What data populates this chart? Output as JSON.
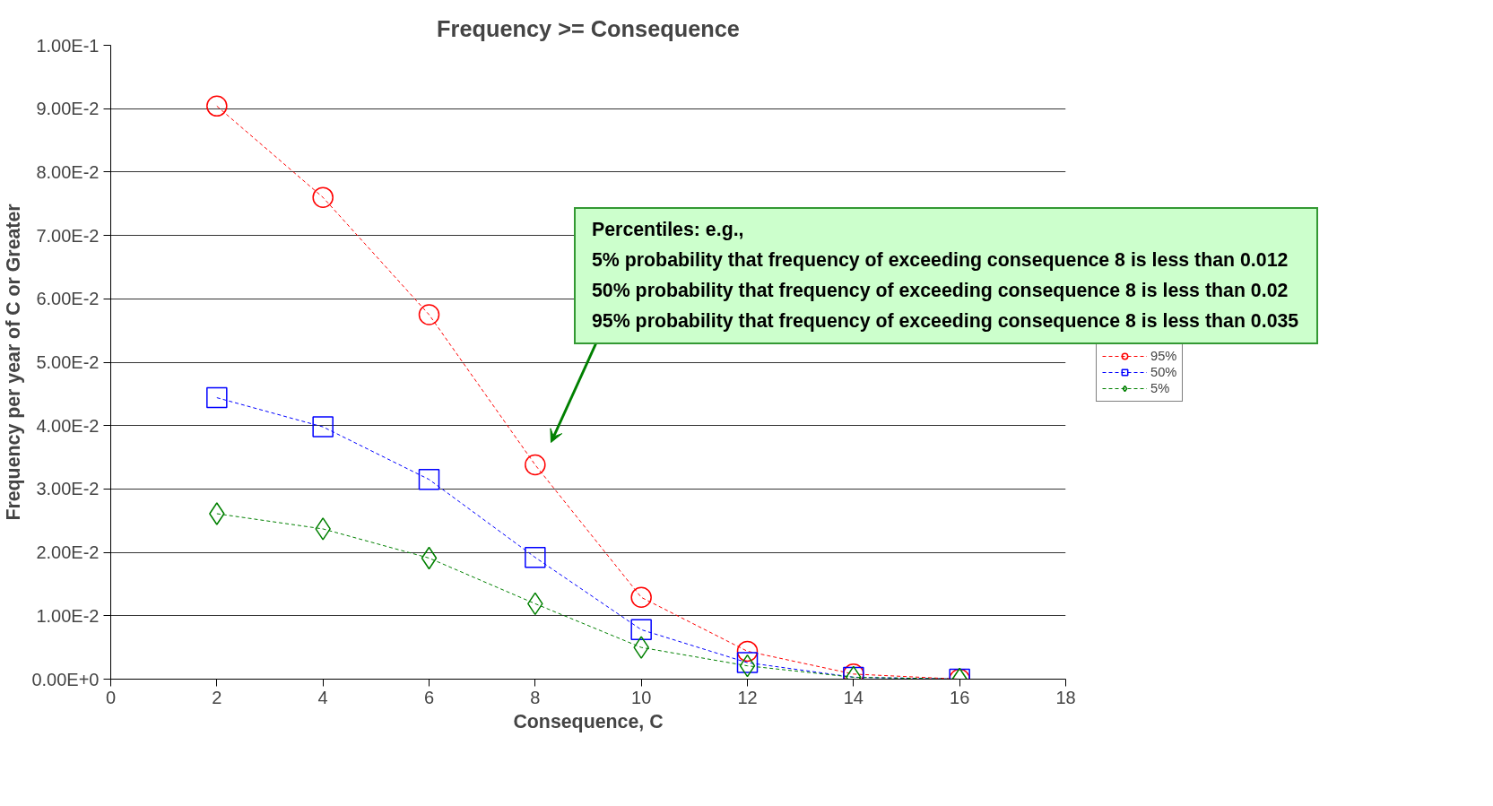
{
  "chart_data": {
    "type": "line",
    "title": "Frequency >= Consequence",
    "xlabel": "Consequence, C",
    "ylabel": "Frequency per year of C or Greater",
    "x": [
      2,
      4,
      6,
      8,
      10,
      12,
      14,
      16
    ],
    "series": [
      {
        "name": "95%",
        "color": "#ff0000",
        "marker": "circle",
        "values": [
          0.0904,
          0.076,
          0.0575,
          0.0338,
          0.0129,
          0.0044,
          0.0008,
          0
        ]
      },
      {
        "name": "50%",
        "color": "#0000ff",
        "marker": "square",
        "values": [
          0.0444,
          0.0398,
          0.0315,
          0.0192,
          0.0078,
          0.0026,
          0.0003,
          0
        ]
      },
      {
        "name": "5%",
        "color": "#008000",
        "marker": "diamond",
        "values": [
          0.0261,
          0.0237,
          0.0191,
          0.0119,
          0.005,
          0.0021,
          0.0003,
          0
        ]
      }
    ],
    "xlim": [
      0,
      18
    ],
    "xticks": [
      0,
      2,
      4,
      6,
      8,
      10,
      12,
      14,
      16,
      18
    ],
    "ylim": [
      0,
      0.1
    ],
    "yticks": [
      {
        "value": 0,
        "label": "0.00E+0"
      },
      {
        "value": 0.01,
        "label": "1.00E-2"
      },
      {
        "value": 0.02,
        "label": "2.00E-2"
      },
      {
        "value": 0.03,
        "label": "3.00E-2"
      },
      {
        "value": 0.04,
        "label": "4.00E-2"
      },
      {
        "value": 0.05,
        "label": "5.00E-2"
      },
      {
        "value": 0.06,
        "label": "6.00E-2"
      },
      {
        "value": 0.07,
        "label": "7.00E-2"
      },
      {
        "value": 0.08,
        "label": "8.00E-2"
      },
      {
        "value": 0.09,
        "label": "9.00E-2"
      },
      {
        "value": 0.1,
        "label": "1.00E-1"
      }
    ],
    "grid": "y",
    "legend": "right",
    "line_style": "dashed",
    "annotations": [
      "Percentiles: e.g.,\n5% probability that frequency of exceeding consequence 8 is less than 0.012\n50% probability that frequency of exceeding consequence 8 is less than 0.02\n95% probability that frequency of exceeding consequence 8 is less than 0.035"
    ]
  }
}
